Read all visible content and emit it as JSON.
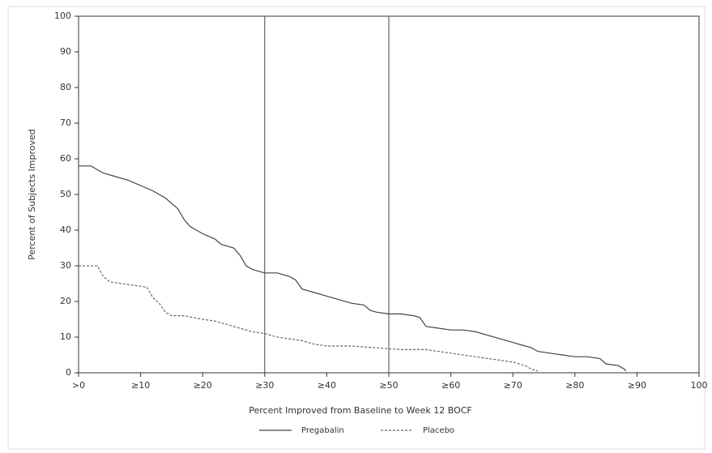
{
  "chart_data": {
    "type": "line",
    "x_label": "Percent Improved from Baseline to Week 12 BOCF",
    "y_label": "Percent of Subjects Improved",
    "xlim": [
      0,
      100
    ],
    "ylim": [
      0,
      100
    ],
    "xticks": [
      {
        "value": 0,
        "label": ">0"
      },
      {
        "value": 10,
        "label": "≥10"
      },
      {
        "value": 20,
        "label": "≥20"
      },
      {
        "value": 30,
        "label": "≥30"
      },
      {
        "value": 40,
        "label": "≥40"
      },
      {
        "value": 50,
        "label": "≥50"
      },
      {
        "value": 60,
        "label": "≥60"
      },
      {
        "value": 70,
        "label": "≥70"
      },
      {
        "value": 80,
        "label": "≥80"
      },
      {
        "value": 90,
        "label": "≥90"
      },
      100
    ],
    "yticks": [
      0,
      10,
      20,
      30,
      40,
      50,
      60,
      70,
      80,
      90,
      100
    ],
    "reference_lines": [
      30,
      50
    ],
    "legend": "bottom",
    "series": [
      {
        "name": "Pregabalin",
        "color": "#444444",
        "line_style": "solid",
        "x": [
          0,
          2,
          4,
          6,
          8,
          10,
          12,
          14,
          16,
          17,
          18,
          20,
          22,
          23,
          25,
          26,
          27,
          28,
          30,
          32,
          34,
          35,
          36,
          38,
          40,
          42,
          44,
          46,
          47,
          48,
          50,
          52,
          54,
          55,
          56,
          58,
          60,
          62,
          64,
          66,
          68,
          70,
          72,
          73,
          74,
          76,
          78,
          80,
          82,
          84,
          85,
          87,
          88,
          88.2
        ],
        "values": [
          58,
          58,
          56,
          55,
          54,
          52.5,
          51,
          49,
          46,
          43,
          41,
          39,
          37.5,
          36,
          35,
          33,
          30,
          29,
          28,
          28,
          27,
          26,
          23.5,
          22.5,
          21.5,
          20.5,
          19.5,
          19,
          17.5,
          17,
          16.5,
          16.5,
          16,
          15.5,
          13,
          12.5,
          12,
          12,
          11.5,
          10.5,
          9.5,
          8.5,
          7.5,
          7,
          6,
          5.5,
          5,
          4.5,
          4.5,
          4,
          2.5,
          2,
          1,
          0.5
        ]
      },
      {
        "name": "Placebo",
        "color": "#666666",
        "line_style": "dashed",
        "x": [
          0,
          3,
          4,
          5,
          7,
          9,
          11,
          12,
          13,
          14,
          15,
          17,
          20,
          22,
          24,
          26,
          28,
          30,
          32,
          34,
          36,
          38,
          40,
          44,
          48,
          52,
          56,
          58,
          60,
          62,
          64,
          66,
          68,
          70,
          72,
          73,
          74
        ],
        "values": [
          30,
          30,
          27,
          25.5,
          25,
          24.5,
          24,
          21,
          19.5,
          17,
          16,
          16,
          15,
          14.5,
          13.5,
          12.5,
          11.5,
          11,
          10,
          9.5,
          9,
          8,
          7.5,
          7.5,
          7,
          6.5,
          6.5,
          6,
          5.5,
          5,
          4.5,
          4,
          3.5,
          3,
          2,
          1,
          0.5
        ]
      }
    ]
  }
}
